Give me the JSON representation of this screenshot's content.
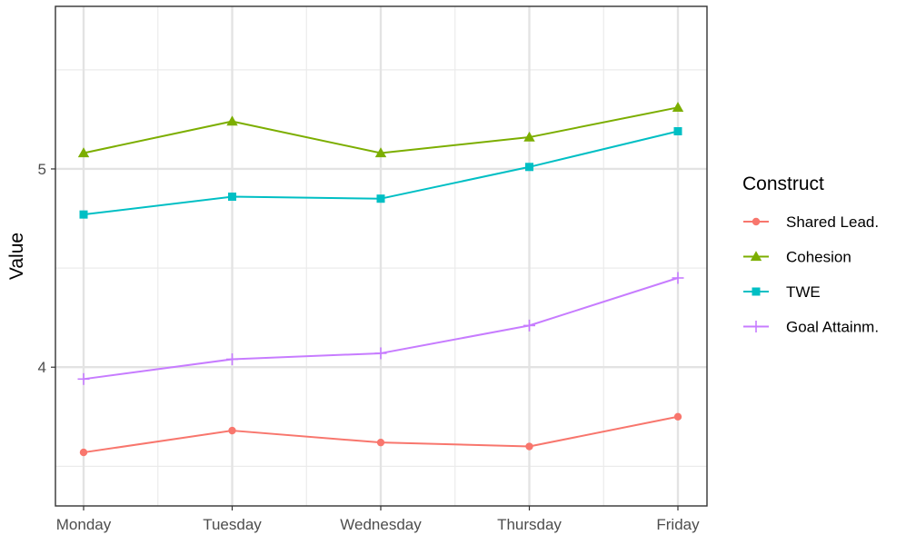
{
  "chart_data": {
    "type": "line",
    "categories": [
      "Monday",
      "Tuesday",
      "Wednesday",
      "Thursday",
      "Friday"
    ],
    "ylabel": "Value",
    "xlabel": "",
    "ylim": [
      3.3,
      5.82
    ],
    "yticks": [
      4,
      5
    ],
    "grid": true,
    "legend": {
      "title": "Construct",
      "position": "right"
    },
    "series": [
      {
        "name": "Shared Lead.",
        "color": "#F8766D",
        "marker": "circle",
        "values": [
          3.57,
          3.68,
          3.62,
          3.6,
          3.75
        ]
      },
      {
        "name": "Cohesion",
        "color": "#7CAE00",
        "marker": "triangle",
        "values": [
          5.08,
          5.24,
          5.08,
          5.16,
          5.31
        ]
      },
      {
        "name": "TWE",
        "color": "#00BFC4",
        "marker": "square",
        "values": [
          4.77,
          4.86,
          4.85,
          5.01,
          5.19
        ]
      },
      {
        "name": "Goal Attainm.",
        "color": "#C77CFF",
        "marker": "plus",
        "values": [
          3.94,
          4.04,
          4.07,
          4.21,
          4.45
        ]
      }
    ]
  }
}
